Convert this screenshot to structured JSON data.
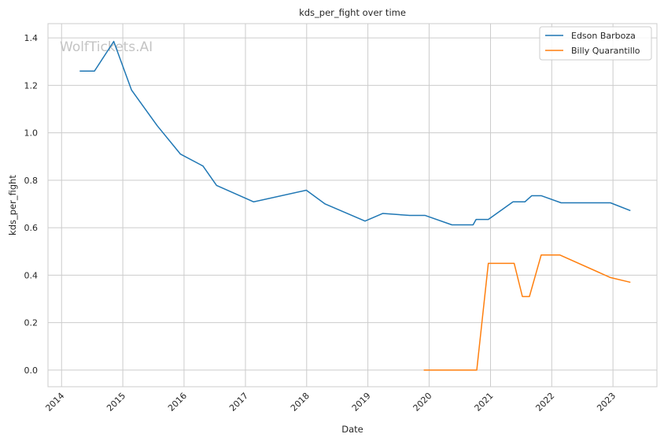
{
  "chart_data": {
    "type": "line",
    "title": "kds_per_fight over time",
    "xlabel": "Date",
    "ylabel": "kds_per_fight",
    "watermark": "WolfTickets.AI",
    "x_ticks": [
      "2014",
      "2015",
      "2016",
      "2017",
      "2018",
      "2019",
      "2020",
      "2021",
      "2022",
      "2023"
    ],
    "y_ticks": [
      "0.0",
      "0.2",
      "0.4",
      "0.6",
      "0.8",
      "1.0",
      "1.2",
      "1.4"
    ],
    "xlim": [
      "2013-10-12",
      "2023-09-20"
    ],
    "ylim": [
      -0.07,
      1.46
    ],
    "grid": true,
    "legend_position": "top-right",
    "series": [
      {
        "name": "Edson Barboza",
        "color": "#1f77b4",
        "points": [
          [
            "2014-04-19",
            1.26
          ],
          [
            "2014-07-16",
            1.26
          ],
          [
            "2014-11-08",
            1.385
          ],
          [
            "2015-02-22",
            1.18
          ],
          [
            "2015-07-25",
            1.03
          ],
          [
            "2015-12-11",
            0.91
          ],
          [
            "2016-04-23",
            0.86
          ],
          [
            "2016-07-13",
            0.778
          ],
          [
            "2017-02-19",
            0.709
          ],
          [
            "2017-12-30",
            0.758
          ],
          [
            "2018-04-21",
            0.7
          ],
          [
            "2018-12-15",
            0.628
          ],
          [
            "2019-03-30",
            0.66
          ],
          [
            "2019-09-07",
            0.652
          ],
          [
            "2019-12-07",
            0.652
          ],
          [
            "2020-05-16",
            0.612
          ],
          [
            "2020-09-19",
            0.612
          ],
          [
            "2020-10-07",
            0.635
          ],
          [
            "2020-12-19",
            0.635
          ],
          [
            "2021-05-15",
            0.709
          ],
          [
            "2021-07-25",
            0.709
          ],
          [
            "2021-09-04",
            0.735
          ],
          [
            "2021-10-30",
            0.735
          ],
          [
            "2022-02-26",
            0.705
          ],
          [
            "2022-12-17",
            0.705
          ],
          [
            "2023-04-15",
            0.672
          ]
        ]
      },
      {
        "name": "Billy Quarantillo",
        "color": "#ff7f0e",
        "points": [
          [
            "2019-11-30",
            0.0
          ],
          [
            "2020-10-11",
            0.0
          ],
          [
            "2020-12-19",
            0.45
          ],
          [
            "2021-05-22",
            0.45
          ],
          [
            "2021-07-10",
            0.31
          ],
          [
            "2021-08-21",
            0.31
          ],
          [
            "2021-10-30",
            0.485
          ],
          [
            "2022-02-19",
            0.485
          ],
          [
            "2022-12-17",
            0.39
          ],
          [
            "2023-04-15",
            0.37
          ]
        ]
      }
    ]
  }
}
